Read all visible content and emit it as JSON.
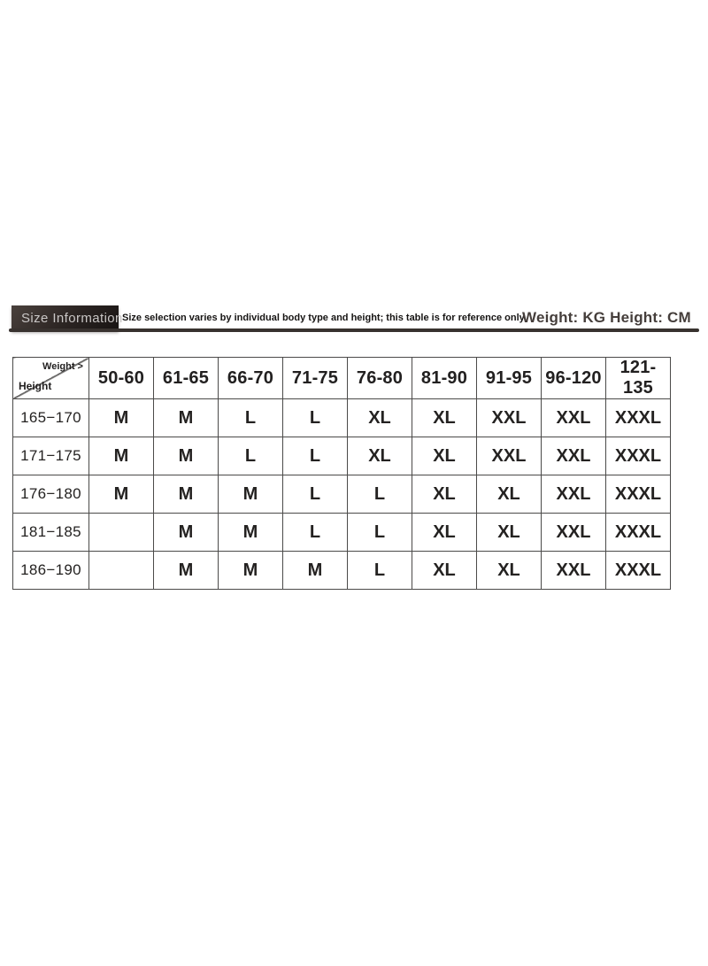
{
  "header": {
    "banner_label": "Size Information",
    "note": "Size selection varies by individual body type and height; this table is for reference only.",
    "units_label": "Weight: KG Height: CM",
    "banner_bg": "#2b2422",
    "banner_text_color": "#c9c6c5",
    "rule_color": "#38322f"
  },
  "size_table": {
    "corner": {
      "top_label": "Weight >",
      "bottom_label": "Height"
    },
    "weight_headers": [
      "50-60",
      "61-65",
      "66-70",
      "71-75",
      "76-80",
      "81-90",
      "91-95",
      "96-120",
      "121-135"
    ],
    "rows": [
      {
        "height": "165−170",
        "sizes": [
          "M",
          "M",
          "L",
          "L",
          "XL",
          "XL",
          "XXL",
          "XXL",
          "XXXL"
        ]
      },
      {
        "height": "171−175",
        "sizes": [
          "M",
          "M",
          "L",
          "L",
          "XL",
          "XL",
          "XXL",
          "XXL",
          "XXXL"
        ]
      },
      {
        "height": "176−180",
        "sizes": [
          "M",
          "M",
          "M",
          "L",
          "L",
          "XL",
          "XL",
          "XXL",
          "XXXL"
        ]
      },
      {
        "height": "181−185",
        "sizes": [
          "",
          "M",
          "M",
          "L",
          "L",
          "XL",
          "XL",
          "XXL",
          "XXXL"
        ]
      },
      {
        "height": "186−190",
        "sizes": [
          "",
          "M",
          "M",
          "M",
          "L",
          "XL",
          "XL",
          "XXL",
          "XXXL"
        ]
      }
    ],
    "border_color": "#4b4a49",
    "text_color": "#242221"
  }
}
